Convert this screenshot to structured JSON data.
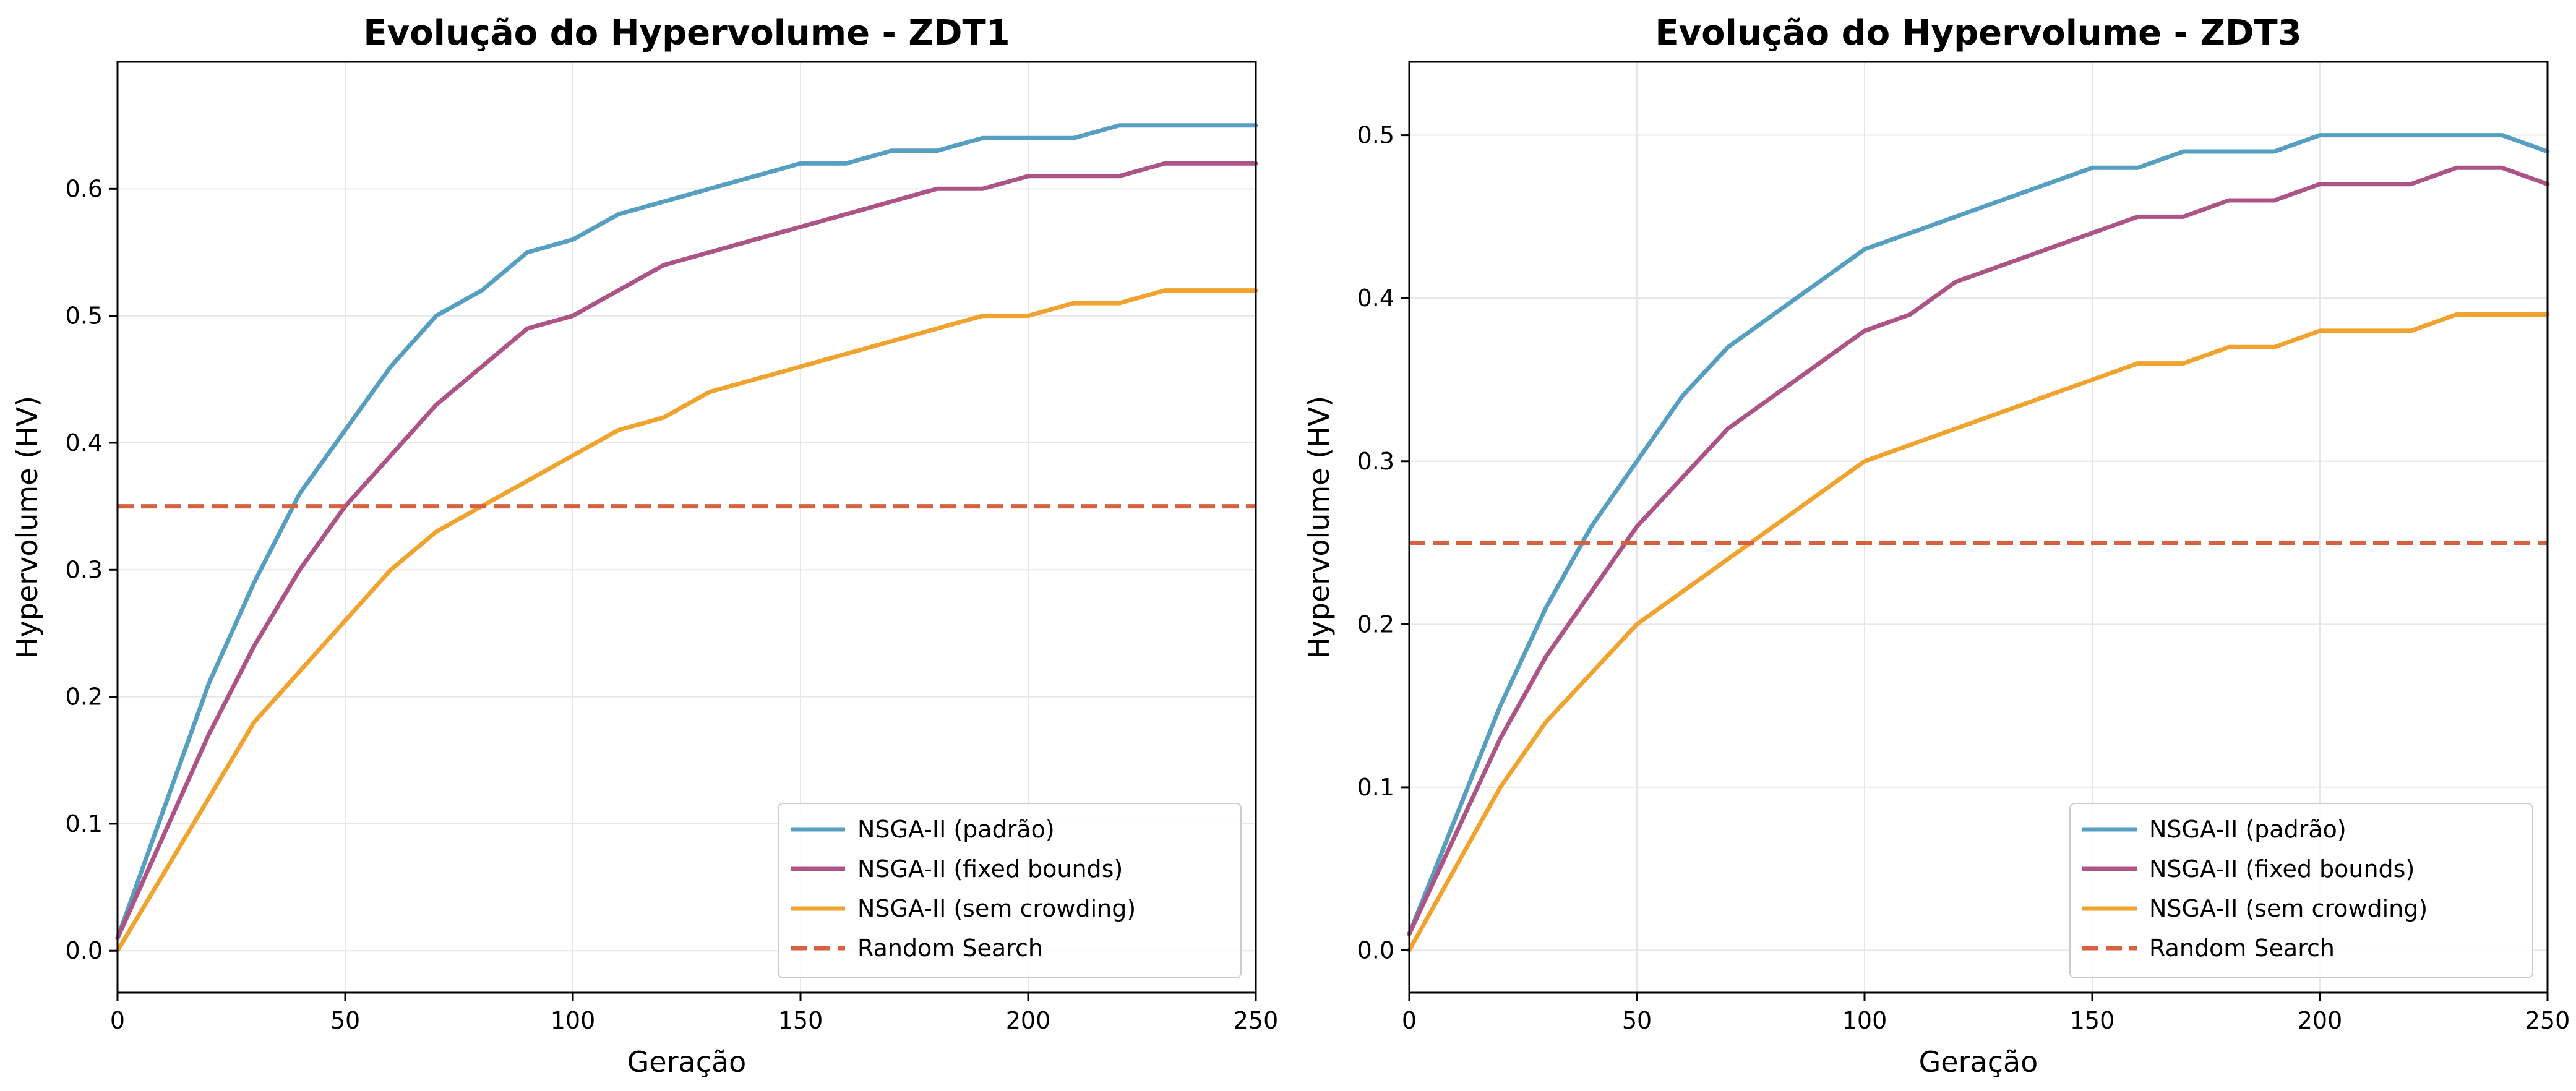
{
  "colors": {
    "padrao": "#569fc1",
    "fixed_bounds": "#ac5485",
    "sem_crowding": "#f0a32e",
    "random_search": "#d6613f",
    "grid": "#e6e6e6"
  },
  "chart_data": [
    {
      "type": "line",
      "title": "Evolução do Hypervolume - ZDT1",
      "xlabel": "Geração",
      "ylabel": "Hypervolume (HV)",
      "xlim": [
        0,
        250
      ],
      "ylim": [
        -0.033,
        0.7
      ],
      "xticks": [
        0,
        50,
        100,
        150,
        200,
        250
      ],
      "xtick_labels": [
        "0",
        "50",
        "100",
        "150",
        "200",
        "250"
      ],
      "yticks": [
        0.0,
        0.1,
        0.2,
        0.3,
        0.4,
        0.5,
        0.6
      ],
      "ytick_labels": [
        "0.0",
        "0.1",
        "0.2",
        "0.3",
        "0.4",
        "0.5",
        "0.6"
      ],
      "grid": true,
      "legend_position": "lower-right",
      "x": [
        0,
        10,
        20,
        30,
        40,
        50,
        60,
        70,
        80,
        90,
        100,
        110,
        120,
        130,
        140,
        150,
        160,
        170,
        180,
        190,
        200,
        210,
        220,
        230,
        240,
        250
      ],
      "series": [
        {
          "name": "NSGA-II (padrão)",
          "style": "solid",
          "color_key": "padrao",
          "values": [
            0.01,
            0.11,
            0.21,
            0.29,
            0.36,
            0.41,
            0.46,
            0.5,
            0.52,
            0.55,
            0.56,
            0.58,
            0.59,
            0.6,
            0.61,
            0.62,
            0.62,
            0.63,
            0.63,
            0.64,
            0.64,
            0.64,
            0.65,
            0.65,
            0.65,
            0.65
          ]
        },
        {
          "name": "NSGA-II (fixed bounds)",
          "style": "solid",
          "color_key": "fixed_bounds",
          "values": [
            0.01,
            0.09,
            0.17,
            0.24,
            0.3,
            0.35,
            0.39,
            0.43,
            0.46,
            0.49,
            0.5,
            0.52,
            0.54,
            0.55,
            0.56,
            0.57,
            0.58,
            0.59,
            0.6,
            0.6,
            0.61,
            0.61,
            0.61,
            0.62,
            0.62,
            0.62
          ]
        },
        {
          "name": "NSGA-II (sem crowding)",
          "style": "solid",
          "color_key": "sem_crowding",
          "values": [
            0.0,
            0.06,
            0.12,
            0.18,
            0.22,
            0.26,
            0.3,
            0.33,
            0.35,
            0.37,
            0.39,
            0.41,
            0.42,
            0.44,
            0.45,
            0.46,
            0.47,
            0.48,
            0.49,
            0.5,
            0.5,
            0.51,
            0.51,
            0.52,
            0.52,
            0.52
          ]
        },
        {
          "name": "Random Search",
          "style": "dashed",
          "color_key": "random_search",
          "values": [
            0.35,
            0.35,
            0.35,
            0.35,
            0.35,
            0.35,
            0.35,
            0.35,
            0.35,
            0.35,
            0.35,
            0.35,
            0.35,
            0.35,
            0.35,
            0.35,
            0.35,
            0.35,
            0.35,
            0.35,
            0.35,
            0.35,
            0.35,
            0.35,
            0.35,
            0.35
          ]
        }
      ]
    },
    {
      "type": "line",
      "title": "Evolução do Hypervolume - ZDT3",
      "xlabel": "Geração",
      "ylabel": "Hypervolume (HV)",
      "xlim": [
        0,
        250
      ],
      "ylim": [
        -0.026,
        0.545
      ],
      "xticks": [
        0,
        50,
        100,
        150,
        200,
        250
      ],
      "xtick_labels": [
        "0",
        "50",
        "100",
        "150",
        "200",
        "250"
      ],
      "yticks": [
        0.0,
        0.1,
        0.2,
        0.3,
        0.4,
        0.5
      ],
      "ytick_labels": [
        "0.0",
        "0.1",
        "0.2",
        "0.3",
        "0.4",
        "0.5"
      ],
      "grid": true,
      "legend_position": "lower-right",
      "x": [
        0,
        10,
        20,
        30,
        40,
        50,
        60,
        70,
        80,
        90,
        100,
        110,
        120,
        130,
        140,
        150,
        160,
        170,
        180,
        190,
        200,
        210,
        220,
        230,
        240,
        250
      ],
      "series": [
        {
          "name": "NSGA-II (padrão)",
          "style": "solid",
          "color_key": "padrao",
          "values": [
            0.01,
            0.08,
            0.15,
            0.21,
            0.26,
            0.3,
            0.34,
            0.37,
            0.39,
            0.41,
            0.43,
            0.44,
            0.45,
            0.46,
            0.47,
            0.48,
            0.48,
            0.49,
            0.49,
            0.49,
            0.5,
            0.5,
            0.5,
            0.5,
            0.5,
            0.49
          ]
        },
        {
          "name": "NSGA-II (fixed bounds)",
          "style": "solid",
          "color_key": "fixed_bounds",
          "values": [
            0.01,
            0.07,
            0.13,
            0.18,
            0.22,
            0.26,
            0.29,
            0.32,
            0.34,
            0.36,
            0.38,
            0.39,
            0.41,
            0.42,
            0.43,
            0.44,
            0.45,
            0.45,
            0.46,
            0.46,
            0.47,
            0.47,
            0.47,
            0.48,
            0.48,
            0.47
          ]
        },
        {
          "name": "NSGA-II (sem crowding)",
          "style": "solid",
          "color_key": "sem_crowding",
          "values": [
            0.0,
            0.05,
            0.1,
            0.14,
            0.17,
            0.2,
            0.22,
            0.24,
            0.26,
            0.28,
            0.3,
            0.31,
            0.32,
            0.33,
            0.34,
            0.35,
            0.36,
            0.36,
            0.37,
            0.37,
            0.38,
            0.38,
            0.38,
            0.39,
            0.39,
            0.39
          ]
        },
        {
          "name": "Random Search",
          "style": "dashed",
          "color_key": "random_search",
          "values": [
            0.25,
            0.25,
            0.25,
            0.25,
            0.25,
            0.25,
            0.25,
            0.25,
            0.25,
            0.25,
            0.25,
            0.25,
            0.25,
            0.25,
            0.25,
            0.25,
            0.25,
            0.25,
            0.25,
            0.25,
            0.25,
            0.25,
            0.25,
            0.25,
            0.25,
            0.25
          ]
        }
      ]
    }
  ]
}
